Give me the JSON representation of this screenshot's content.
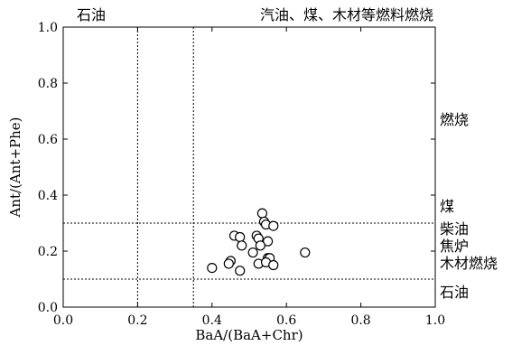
{
  "chart_data": {
    "type": "scatter",
    "xlabel": "BaA/(BaA+Chr)",
    "ylabel": "Ant/(Ant+Phe)",
    "xlim": [
      0.0,
      1.0
    ],
    "ylim": [
      0.0,
      1.0
    ],
    "x_ticks": [
      "0.0",
      "0.2",
      "0.4",
      "0.6",
      "0.8",
      "1.0"
    ],
    "y_ticks": [
      "0.0",
      "0.2",
      "0.4",
      "0.6",
      "0.8",
      "1.0"
    ],
    "grid": false,
    "vertical_reference_lines": [
      0.2,
      0.35
    ],
    "horizontal_reference_lines": [
      0.1,
      0.3
    ],
    "top_region_labels": {
      "left": "石油",
      "right": "汽油、煤、木材等燃料燃烧"
    },
    "right_region_labels": {
      "combustion": "燃烧",
      "coal": "煤",
      "diesel": "柴油",
      "coking": "焦炉",
      "wood": "木材燃烧",
      "petroleum": "石油"
    },
    "points": [
      {
        "x": 0.535,
        "y": 0.335
      },
      {
        "x": 0.54,
        "y": 0.305
      },
      {
        "x": 0.545,
        "y": 0.295
      },
      {
        "x": 0.565,
        "y": 0.29
      },
      {
        "x": 0.46,
        "y": 0.255
      },
      {
        "x": 0.475,
        "y": 0.25
      },
      {
        "x": 0.52,
        "y": 0.255
      },
      {
        "x": 0.525,
        "y": 0.245
      },
      {
        "x": 0.55,
        "y": 0.235
      },
      {
        "x": 0.48,
        "y": 0.22
      },
      {
        "x": 0.53,
        "y": 0.22
      },
      {
        "x": 0.51,
        "y": 0.195
      },
      {
        "x": 0.65,
        "y": 0.195
      },
      {
        "x": 0.55,
        "y": 0.175
      },
      {
        "x": 0.555,
        "y": 0.175
      },
      {
        "x": 0.45,
        "y": 0.165
      },
      {
        "x": 0.445,
        "y": 0.155
      },
      {
        "x": 0.525,
        "y": 0.155
      },
      {
        "x": 0.545,
        "y": 0.16
      },
      {
        "x": 0.565,
        "y": 0.15
      },
      {
        "x": 0.4,
        "y": 0.14
      },
      {
        "x": 0.475,
        "y": 0.13
      }
    ]
  }
}
